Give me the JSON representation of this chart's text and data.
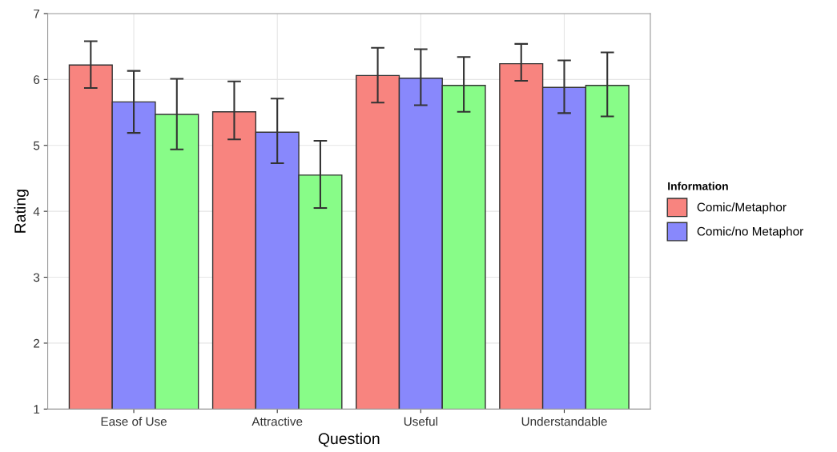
{
  "chart_data": {
    "type": "bar",
    "xlabel": "Question",
    "ylabel": "Rating",
    "legend_title": "Information",
    "categories": [
      "Ease of Use",
      "Attractive",
      "Useful",
      "Understandable"
    ],
    "series": [
      {
        "name": "Comic/Metaphor",
        "color": "#f8847f",
        "values": [
          6.22,
          5.51,
          6.06,
          6.24
        ],
        "errors": [
          [
            5.87,
            6.58
          ],
          [
            5.09,
            5.97
          ],
          [
            5.65,
            6.48
          ],
          [
            5.98,
            6.54
          ]
        ]
      },
      {
        "name": "Comic/no Metaphor",
        "color": "#8888fc",
        "values": [
          5.66,
          5.2,
          6.02,
          5.88
        ],
        "errors": [
          [
            5.19,
            6.13
          ],
          [
            4.73,
            5.71
          ],
          [
            5.61,
            6.46
          ],
          [
            5.49,
            6.29
          ]
        ]
      },
      {
        "color": "#88fc88",
        "values": [
          5.47,
          4.55,
          5.91,
          5.91
        ],
        "errors": [
          [
            4.94,
            6.01
          ],
          [
            4.05,
            5.07
          ],
          [
            5.51,
            6.34
          ],
          [
            5.44,
            6.41
          ]
        ]
      }
    ],
    "ylim": [
      1,
      7
    ],
    "yticks": [
      1,
      2,
      3,
      4,
      5,
      6,
      7
    ],
    "grid": true,
    "legend": "right"
  }
}
